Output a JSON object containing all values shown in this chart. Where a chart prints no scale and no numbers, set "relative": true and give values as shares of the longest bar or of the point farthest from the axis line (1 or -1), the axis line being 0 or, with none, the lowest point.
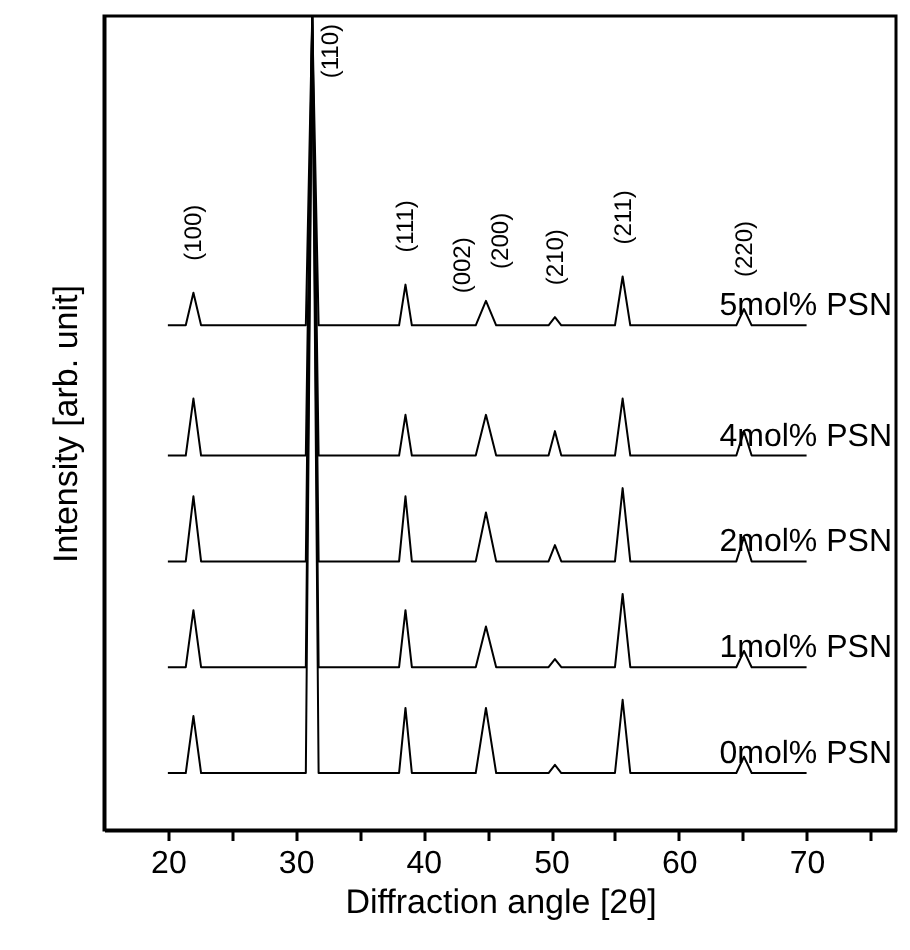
{
  "chart_data": {
    "type": "line",
    "relative": true,
    "xlabel": "Diffraction angle [2θ]",
    "ylabel": "Intensity [arb. unit]",
    "xlim": [
      15,
      77
    ],
    "xticks": [
      20,
      {
        "value": 25,
        "label": null
      },
      30,
      {
        "value": 35,
        "label": null
      },
      40,
      {
        "value": 45,
        "label": null
      },
      50,
      {
        "value": 55,
        "label": null
      },
      60,
      {
        "value": 65,
        "label": null
      },
      70,
      {
        "value": 75,
        "label": null
      }
    ],
    "tick_labels": "x",
    "x": [
      20,
      21.4,
      22,
      22.6,
      30.8,
      31.3,
      31.8,
      38.1,
      38.6,
      39.1,
      44.1,
      44.9,
      45.7,
      49.8,
      50.3,
      50.8,
      55.0,
      55.6,
      56.2,
      64.5,
      65.1,
      65.7,
      70
    ],
    "series": [
      {
        "name": "5mol% PSN",
        "color": "#000000",
        "values": [
          0.62,
          0.62,
          0.66,
          0.62,
          0.62,
          1.0,
          0.62,
          0.62,
          0.67,
          0.62,
          0.62,
          0.65,
          0.62,
          0.62,
          0.63,
          0.62,
          0.62,
          0.68,
          0.62,
          0.62,
          0.64,
          0.62,
          0.62
        ]
      },
      {
        "name": "4mol% PSN",
        "color": "#000000",
        "values": [
          0.46,
          0.46,
          0.53,
          0.46,
          0.46,
          1.0,
          0.46,
          0.46,
          0.51,
          0.46,
          0.46,
          0.51,
          0.46,
          0.46,
          0.49,
          0.46,
          0.46,
          0.53,
          0.46,
          0.46,
          0.49,
          0.46,
          0.46
        ]
      },
      {
        "name": "2mol% PSN",
        "color": "#000000",
        "values": [
          0.33,
          0.33,
          0.41,
          0.33,
          0.33,
          1.0,
          0.33,
          0.33,
          0.41,
          0.33,
          0.33,
          0.39,
          0.33,
          0.33,
          0.35,
          0.33,
          0.33,
          0.42,
          0.33,
          0.33,
          0.36,
          0.33,
          0.33
        ]
      },
      {
        "name": "1mol% PSN",
        "color": "#000000",
        "values": [
          0.2,
          0.2,
          0.27,
          0.2,
          0.2,
          1.0,
          0.2,
          0.2,
          0.27,
          0.2,
          0.2,
          0.25,
          0.2,
          0.2,
          0.21,
          0.2,
          0.2,
          0.29,
          0.2,
          0.2,
          0.22,
          0.2,
          0.2
        ]
      },
      {
        "name": "0mol% PSN",
        "color": "#000000",
        "values": [
          0.07,
          0.07,
          0.14,
          0.07,
          0.07,
          1.0,
          0.07,
          0.07,
          0.15,
          0.07,
          0.07,
          0.15,
          0.07,
          0.07,
          0.08,
          0.07,
          0.07,
          0.16,
          0.07,
          0.07,
          0.09,
          0.07,
          0.07
        ]
      }
    ],
    "annotations": [
      {
        "text": "(100)",
        "x": 22,
        "y": 0.66
      },
      {
        "text": "(110)",
        "x": 31.3,
        "y": 1.0
      },
      {
        "text": "(111)",
        "x": 38.6,
        "y": 0.67
      },
      {
        "text": "(002)",
        "x": 44.1,
        "y": 0.62
      },
      {
        "text": "(200)",
        "x": 44.9,
        "y": 0.65
      },
      {
        "text": "(210)",
        "x": 50.3,
        "y": 0.63
      },
      {
        "text": "(211)",
        "x": 55.6,
        "y": 0.68
      },
      {
        "text": "(220)",
        "x": 65.1,
        "y": 0.64
      }
    ]
  }
}
